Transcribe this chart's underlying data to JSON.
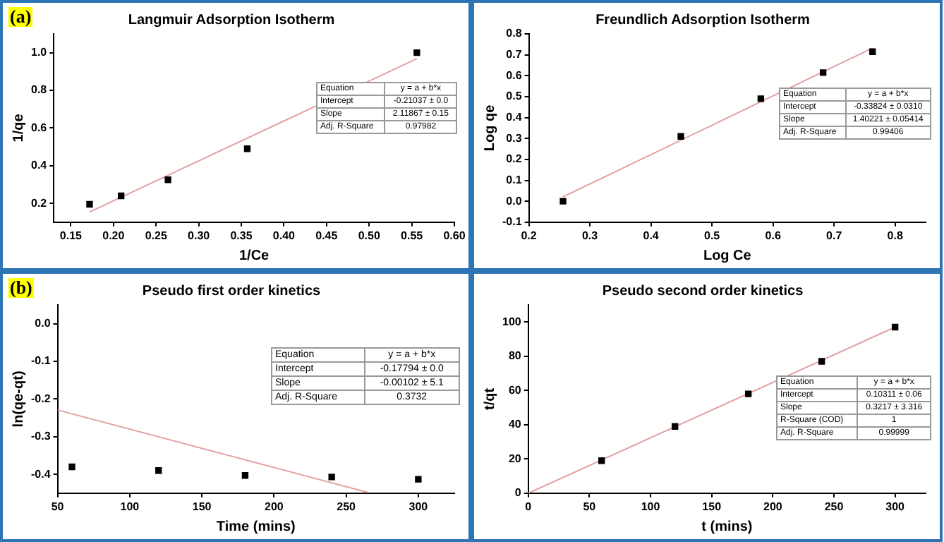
{
  "chart_data": [
    {
      "type": "scatter",
      "title": "Langmuir Adsorption Isotherm",
      "xlabel": "1/Ce",
      "ylabel": "1/qe",
      "xlim": [
        0.13,
        0.6
      ],
      "ylim": [
        0.1,
        1.1
      ],
      "xticks": [
        {
          "value": 0.15,
          "label": "0.15"
        },
        {
          "value": 0.2,
          "label": "0.20"
        },
        {
          "value": 0.25,
          "label": "0.25"
        },
        {
          "value": 0.3,
          "label": "0.30"
        },
        {
          "value": 0.35,
          "label": "0.35"
        },
        {
          "value": 0.4,
          "label": "0.40"
        },
        {
          "value": 0.45,
          "label": "0.45"
        },
        {
          "value": 0.5,
          "label": "0.50"
        },
        {
          "value": 0.55,
          "label": "0.55"
        },
        {
          "value": 0.6,
          "label": "0.60"
        }
      ],
      "yticks": [
        {
          "value": 0.2,
          "label": "0.2"
        },
        {
          "value": 0.4,
          "label": "0.4"
        },
        {
          "value": 0.6,
          "label": "0.6"
        },
        {
          "value": 0.8,
          "label": "0.8"
        },
        {
          "value": 1,
          "label": "1.0"
        }
      ],
      "series": [
        {
          "type": "scatter",
          "color": "#000000",
          "marker": "square",
          "x": [
            0.172,
            0.209,
            0.264,
            0.357,
            0.556
          ],
          "values": [
            0.195,
            0.24,
            0.325,
            0.49,
            1.0
          ]
        },
        {
          "type": "line",
          "color": "#e4a0a0",
          "x": [
            0.172,
            0.556
          ],
          "values": [
            0.154,
            0.968
          ]
        }
      ],
      "annotations": [
        "(a)",
        "Equation",
        "y = a + b*x",
        "Intercept",
        "-0.21037 ± 0.0",
        "Slope",
        "2.11867 ± 0.15",
        "Adj. R-Square",
        "0.97982"
      ]
    },
    {
      "type": "scatter",
      "title": "Freundlich Adsorption Isotherm",
      "xlabel": "Log Ce",
      "ylabel": "Log qe",
      "xlim": [
        0.2,
        0.85
      ],
      "ylim": [
        -0.1,
        0.8
      ],
      "xticks": [
        {
          "value": 0.2,
          "label": "0.2"
        },
        {
          "value": 0.3,
          "label": "0.3"
        },
        {
          "value": 0.4,
          "label": "0.4"
        },
        {
          "value": 0.5,
          "label": "0.5"
        },
        {
          "value": 0.6,
          "label": "0.6"
        },
        {
          "value": 0.7,
          "label": "0.7"
        },
        {
          "value": 0.8,
          "label": "0.8"
        }
      ],
      "yticks": [
        {
          "value": -0.1,
          "label": "-0.1"
        },
        {
          "value": 0,
          "label": "0.0"
        },
        {
          "value": 0.1,
          "label": "0.1"
        },
        {
          "value": 0.2,
          "label": "0.2"
        },
        {
          "value": 0.3,
          "label": "0.3"
        },
        {
          "value": 0.4,
          "label": "0.4"
        },
        {
          "value": 0.5,
          "label": "0.5"
        },
        {
          "value": 0.6,
          "label": "0.6"
        },
        {
          "value": 0.7,
          "label": "0.7"
        },
        {
          "value": 0.8,
          "label": "0.8"
        }
      ],
      "series": [
        {
          "type": "scatter",
          "color": "#000000",
          "marker": "square",
          "x": [
            0.256,
            0.449,
            0.58,
            0.682,
            0.763
          ],
          "values": [
            0.0,
            0.31,
            0.49,
            0.615,
            0.715
          ]
        },
        {
          "type": "line",
          "color": "#e4a0a0",
          "x": [
            0.256,
            0.763
          ],
          "values": [
            0.021,
            0.732
          ]
        }
      ],
      "annotations": [
        "Equation",
        "y = a + b*x",
        "Intercept",
        "-0.33824 ± 0.0310",
        "Slope",
        "1.40221 ± 0.05414",
        "Adj. R-Square",
        "0.99406"
      ]
    },
    {
      "type": "scatter",
      "title": "Pseudo first order kinetics",
      "xlabel": "Time (mins)",
      "ylabel": "ln(qe-qt)",
      "xlim": [
        50,
        325
      ],
      "ylim": [
        -0.45,
        0.05
      ],
      "xticks": [
        50,
        100,
        150,
        200,
        250,
        300
      ],
      "yticks": [
        {
          "value": -0.4,
          "label": "-0.4"
        },
        {
          "value": -0.3,
          "label": "-0.3"
        },
        {
          "value": -0.2,
          "label": "-0.2"
        },
        {
          "value": -0.1,
          "label": "-0.1"
        },
        {
          "value": 0,
          "label": "0.0"
        }
      ],
      "series": [
        {
          "type": "scatter",
          "color": "#000000",
          "marker": "square",
          "x": [
            60,
            120,
            180,
            240,
            300
          ],
          "values": [
            -0.38,
            -0.39,
            -0.403,
            -0.407,
            -0.413
          ]
        },
        {
          "type": "line",
          "color": "#e4a0a0",
          "x": [
            50,
            265
          ],
          "values": [
            -0.229,
            -0.448
          ]
        }
      ],
      "annotations": [
        "(b)",
        "Equation",
        "y = a + b*x",
        "Intercept",
        "-0.17794 ± 0.0",
        "Slope",
        "-0.00102 ± 5.1",
        "Adj. R-Square",
        "0.3732"
      ]
    },
    {
      "type": "scatter",
      "title": "Pseudo second order kinetics",
      "xlabel": "t (mins)",
      "ylabel": "t/qt",
      "xlim": [
        0,
        325
      ],
      "ylim": [
        0,
        110
      ],
      "xticks": [
        0,
        50,
        100,
        150,
        200,
        250,
        300
      ],
      "yticks": [
        0,
        20,
        40,
        60,
        80,
        100
      ],
      "series": [
        {
          "type": "scatter",
          "color": "#000000",
          "marker": "square",
          "x": [
            60,
            120,
            180,
            240,
            300
          ],
          "values": [
            19,
            39,
            58,
            77,
            97
          ]
        },
        {
          "type": "line",
          "color": "#e4a0a0",
          "x": [
            0,
            300
          ],
          "values": [
            0,
            97
          ]
        }
      ],
      "annotations": [
        "Equation",
        "y = a + b*x",
        "Intercept",
        "0.10311 ± 0.06",
        "Slope",
        "0.3217 ± 3.316",
        "R-Square (COD)",
        "1",
        "Adj. R-Square",
        "0.99999"
      ]
    }
  ]
}
